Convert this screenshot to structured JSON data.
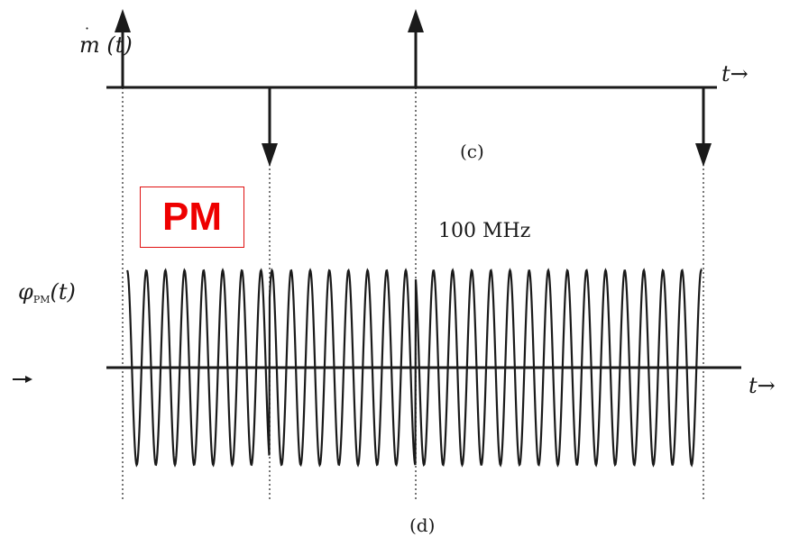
{
  "top_signal": {
    "label_base": "m",
    "label_arg": "(t)",
    "axis_label": "t",
    "axis_arrow": "→",
    "caption": "(c)"
  },
  "bottom_signal": {
    "label_symbol": "φ",
    "label_sub": "PM",
    "label_arg": "(t)",
    "axis_label": "t",
    "axis_arrow": "→",
    "frequency_label": "100 MHz",
    "caption": "(d)"
  },
  "overlay": {
    "text": "PM",
    "color": "#ee0000"
  },
  "colors": {
    "ink": "#1a1a1a",
    "guide": "#555555"
  }
}
